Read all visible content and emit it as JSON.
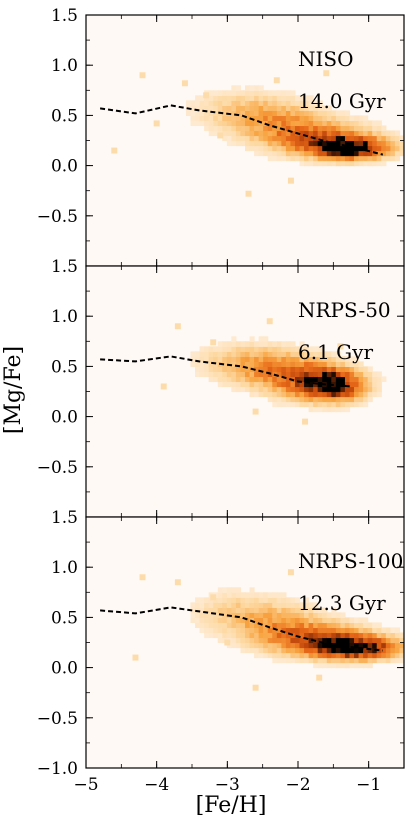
{
  "chart_data": {
    "type": "heatmap",
    "x_axis": {
      "label": "[Fe/H]",
      "range": [
        -5,
        -0.5
      ],
      "ticks": [
        -5,
        -4,
        -3,
        -2,
        -1
      ],
      "tick_labels": [
        "−5",
        "−4",
        "−3",
        "−2",
        "−1"
      ]
    },
    "y_axis": {
      "label": "[Mg/Fe]",
      "range": [
        -1.0,
        1.5
      ],
      "ticks": [
        -1.0,
        -0.5,
        0.0,
        0.5,
        1.0,
        1.5
      ],
      "tick_labels": [
        "−1.0",
        "−0.5",
        "0.0",
        "0.5",
        "1.0",
        "1.5"
      ]
    },
    "colormap": [
      "#fff5ef",
      "#fdd9a3",
      "#f8a543",
      "#e76818",
      "#b8420a",
      "#000000"
    ],
    "reference_line": {
      "style": "dashed",
      "color": "#000000",
      "x": [
        -4.8,
        -4.3,
        -3.8,
        -3.4,
        -2.8,
        -2.4,
        -2.0,
        -1.6,
        -1.2,
        -0.8
      ],
      "y": [
        0.57,
        0.52,
        0.6,
        0.55,
        0.5,
        0.4,
        0.32,
        0.24,
        0.18,
        0.11
      ]
    },
    "panels": [
      {
        "name": "NISO",
        "age": "14.0 Gyr",
        "show_bottom_labels": false,
        "show_top_tick_label": true,
        "line_x": [
          -4.8,
          -4.3,
          -3.8,
          -3.4,
          -2.8,
          -2.4,
          -2.0,
          -1.6,
          -1.2,
          -0.8
        ],
        "line_y": [
          0.57,
          0.52,
          0.6,
          0.55,
          0.5,
          0.4,
          0.32,
          0.24,
          0.18,
          0.11
        ],
        "density": [
          {
            "x": -1.25,
            "y": 0.18,
            "sx": 0.35,
            "sy": 0.07,
            "w": 1.0
          },
          {
            "x": -1.7,
            "y": 0.28,
            "sx": 0.45,
            "sy": 0.11,
            "w": 0.55
          },
          {
            "x": -2.3,
            "y": 0.45,
            "sx": 0.4,
            "sy": 0.14,
            "w": 0.3
          },
          {
            "x": -2.9,
            "y": 0.55,
            "sx": 0.4,
            "sy": 0.13,
            "w": 0.15
          }
        ],
        "outliers": [
          [
            -4.2,
            0.9
          ],
          [
            -3.6,
            0.82
          ],
          [
            -3.3,
            0.7
          ],
          [
            -4.0,
            0.42
          ],
          [
            -3.1,
            0.3
          ],
          [
            -2.7,
            -0.28
          ],
          [
            -2.3,
            0.85
          ],
          [
            -1.6,
            0.92
          ],
          [
            -2.1,
            -0.15
          ],
          [
            -4.6,
            0.15
          ]
        ]
      },
      {
        "name": "NRPS-50",
        "age": "6.1 Gyr",
        "show_bottom_labels": false,
        "show_top_tick_label": true,
        "line_x": [
          -4.8,
          -4.3,
          -3.8,
          -3.4,
          -2.8,
          -2.4,
          -2.0,
          -1.6,
          -1.4,
          -1.25
        ],
        "line_y": [
          0.57,
          0.55,
          0.6,
          0.55,
          0.5,
          0.43,
          0.35,
          0.32,
          0.31,
          0.3
        ],
        "density": [
          {
            "x": -1.5,
            "y": 0.32,
            "sx": 0.28,
            "sy": 0.1,
            "w": 1.0
          },
          {
            "x": -1.95,
            "y": 0.4,
            "sx": 0.35,
            "sy": 0.13,
            "w": 0.5
          },
          {
            "x": -2.5,
            "y": 0.5,
            "sx": 0.35,
            "sy": 0.13,
            "w": 0.28
          },
          {
            "x": -3.0,
            "y": 0.55,
            "sx": 0.35,
            "sy": 0.12,
            "w": 0.12
          }
        ],
        "outliers": [
          [
            -3.7,
            0.9
          ],
          [
            -3.2,
            0.74
          ],
          [
            -2.4,
            0.95
          ],
          [
            -3.9,
            0.3
          ],
          [
            -2.6,
            0.05
          ],
          [
            -1.9,
            -0.05
          ],
          [
            -1.4,
            0.7
          ]
        ]
      },
      {
        "name": "NRPS-100",
        "age": "12.3 Gyr",
        "show_bottom_labels": true,
        "show_top_tick_label": true,
        "line_x": [
          -4.8,
          -4.3,
          -3.8,
          -3.4,
          -2.8,
          -2.4,
          -2.0,
          -1.6,
          -1.2,
          -0.8
        ],
        "line_y": [
          0.57,
          0.54,
          0.6,
          0.56,
          0.5,
          0.4,
          0.31,
          0.24,
          0.2,
          0.17
        ],
        "density": [
          {
            "x": -1.15,
            "y": 0.2,
            "sx": 0.38,
            "sy": 0.07,
            "w": 1.0
          },
          {
            "x": -1.65,
            "y": 0.28,
            "sx": 0.45,
            "sy": 0.1,
            "w": 0.6
          },
          {
            "x": -2.25,
            "y": 0.42,
            "sx": 0.42,
            "sy": 0.14,
            "w": 0.3
          },
          {
            "x": -2.9,
            "y": 0.55,
            "sx": 0.4,
            "sy": 0.14,
            "w": 0.15
          }
        ],
        "outliers": [
          [
            -4.2,
            0.9
          ],
          [
            -3.7,
            0.85
          ],
          [
            -3.2,
            0.7
          ],
          [
            -4.3,
            0.1
          ],
          [
            -2.6,
            -0.2
          ],
          [
            -2.1,
            0.95
          ],
          [
            -1.7,
            -0.1
          ],
          [
            -3.0,
            0.25
          ]
        ]
      }
    ]
  }
}
